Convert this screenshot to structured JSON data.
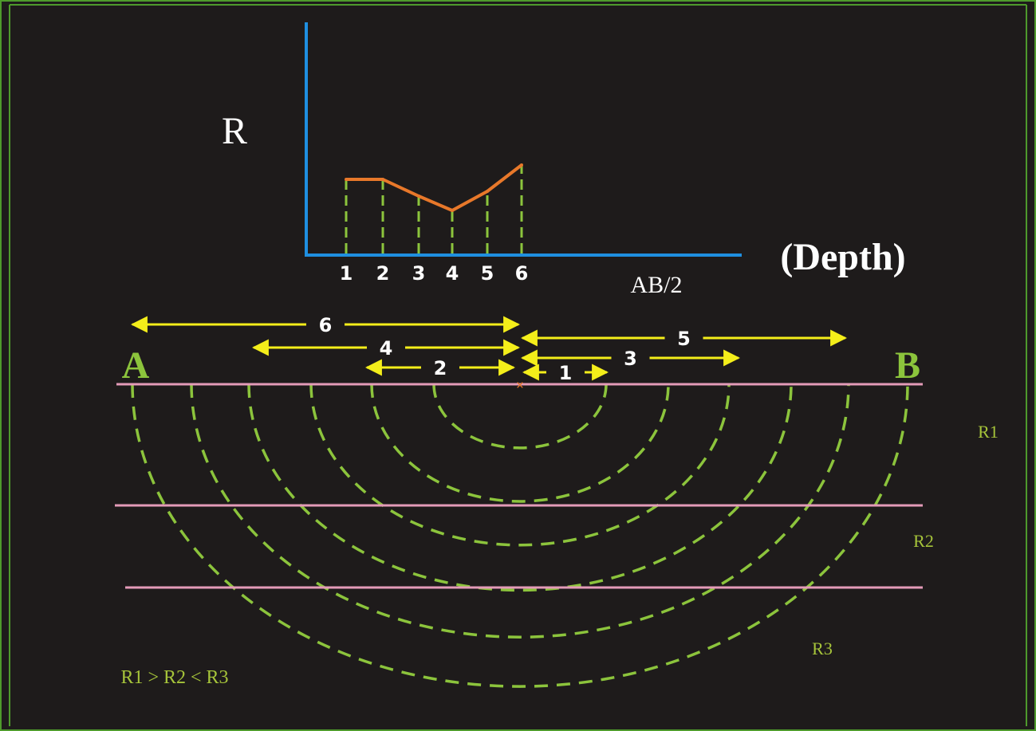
{
  "colors": {
    "background": "#1e1b1b",
    "frame": "#4e9a2c",
    "axis": "#1f8fe0",
    "curve": "#e8782a",
    "dash": "#8cc43c",
    "arrow": "#f4ee1a",
    "layer": "#e49bb8",
    "electrode": "#8cc43c",
    "text": "#ffffff",
    "layer_label": "#a6c43a",
    "center_mark": "#e8782a"
  },
  "plot": {
    "y_label": "R",
    "x_label": "(Depth)",
    "x_sublabel": "AB/2",
    "ticks": [
      "1",
      "2",
      "3",
      "4",
      "5",
      "6"
    ]
  },
  "chart_data": {
    "type": "line",
    "x": [
      1,
      2,
      3,
      4,
      5,
      6
    ],
    "values": [
      3.1,
      3.1,
      2.4,
      1.8,
      2.6,
      3.7
    ]
  },
  "electrodes": {
    "left": "A",
    "right": "B"
  },
  "spacings": [
    "1",
    "2",
    "3",
    "4",
    "5",
    "6"
  ],
  "layers": [
    "R1",
    "R2",
    "R3"
  ],
  "relation": "R1 > R2 < R3"
}
